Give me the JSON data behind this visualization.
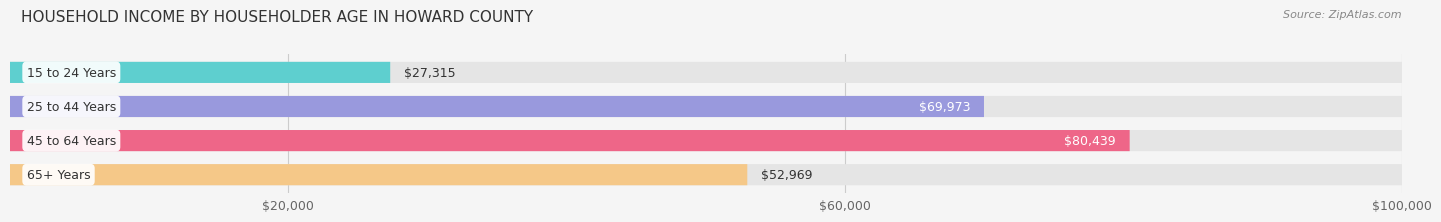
{
  "title": "HOUSEHOLD INCOME BY HOUSEHOLDER AGE IN HOWARD COUNTY",
  "source": "Source: ZipAtlas.com",
  "categories": [
    "15 to 24 Years",
    "25 to 44 Years",
    "45 to 64 Years",
    "65+ Years"
  ],
  "values": [
    27315,
    69973,
    80439,
    52969
  ],
  "bar_colors": [
    "#5ecfcf",
    "#9999dd",
    "#ee6688",
    "#f5c888"
  ],
  "value_label_colors": [
    "#333333",
    "#ffffff",
    "#ffffff",
    "#333333"
  ],
  "xlim": [
    0,
    100000
  ],
  "xticks": [
    20000,
    60000,
    100000
  ],
  "xtick_labels": [
    "$20,000",
    "$60,000",
    "$100,000"
  ],
  "title_fontsize": 11,
  "source_fontsize": 8,
  "bar_label_fontsize": 9,
  "category_fontsize": 9,
  "background_color": "#f5f5f5",
  "bar_bg_color": "#e5e5e5"
}
